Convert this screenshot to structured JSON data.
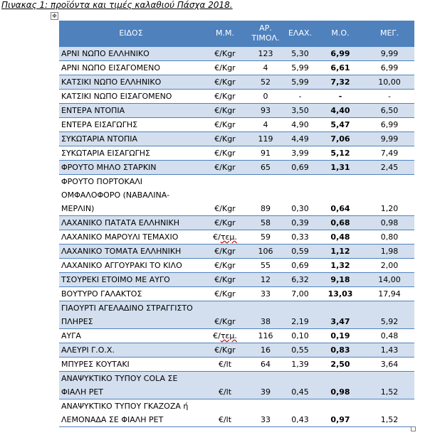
{
  "caption": "Πινακας 1: προϊόντα και τιμές καλαθιού Πάσχα 2018.",
  "move_handle_glyph": "✥",
  "headers": {
    "eidos": "ΕΙΔΟΣ",
    "mm": "Μ.Μ.",
    "artimol_line1": "ΑΡ.",
    "artimol_line2": "ΤΙΜΟΛ.",
    "elax": "ΕΛΑΧ.",
    "mo": "Μ.Ο.",
    "meg": "ΜΕΓ."
  },
  "rows": [
    {
      "eidos": "ΑΡΝΙ ΝΩΠΟ ΕΛΛΗΝΙΚΟ",
      "mm": "€/Kgr",
      "artimol": "123",
      "elax": "5,30",
      "mo": "6,99",
      "meg": "9,99"
    },
    {
      "eidos": "ΑΡΝΙ ΝΩΠΟ ΕΙΣΑΓΟΜΕΝΟ",
      "mm": "€/Kgr",
      "artimol": "4",
      "elax": "5,99",
      "mo": "6,61",
      "meg": "6,99"
    },
    {
      "eidos": "ΚΑΤΣΙΚΙ ΝΩΠΟ ΕΛΛΗΝΙΚΟ",
      "mm": "€/Kgr",
      "artimol": "52",
      "elax": "5,99",
      "mo": "7,32",
      "meg": "10,00"
    },
    {
      "eidos": "ΚΑΤΣΙΚΙ ΝΩΠΟ ΕΙΣΑΓΟΜΕΝΟ",
      "mm": "€/Kgr",
      "artimol": "0",
      "elax": "-",
      "mo": "-",
      "meg": "-"
    },
    {
      "eidos": "ΕΝΤΕΡΑ ΝΤΟΠΙΑ",
      "mm": "€/Kgr",
      "artimol": "93",
      "elax": "3,50",
      "mo": "4,40",
      "meg": "6,50"
    },
    {
      "eidos": "ΕΝΤΕΡΑ ΕΙΣΑΓΩΓΗΣ",
      "mm": "€/Kgr",
      "artimol": "4",
      "elax": "4,90",
      "mo": "5,47",
      "meg": "6,99"
    },
    {
      "eidos": "ΣΥΚΩΤΑΡΙΑ ΝΤΟΠΙΑ",
      "mm": "€/Kgr",
      "artimol": "119",
      "elax": "4,49",
      "mo": "7,06",
      "meg": "9,99"
    },
    {
      "eidos": "ΣΥΚΩΤΑΡΙΑ ΕΙΣΑΓΩΓΗΣ",
      "mm": "€/Kgr",
      "artimol": "91",
      "elax": "3,99",
      "mo": "5,12",
      "meg": "7,49"
    },
    {
      "eidos": "ΦΡΟΥΤΟ ΜΗΛΟ ΣΤΑΡΚΙΝ",
      "mm": "€/Kgr",
      "artimol": "65",
      "elax": "0,69",
      "mo": "1,31",
      "meg": "2,45"
    },
    {
      "eidos": "ΦΡΟΥΤΟ ΠΟΡΤΟΚΑΛΙ ΟΜΦΑΛΟΦΟΡΟ (ΝΑΒΑΛΙΝΑ-ΜΕΡΛΙΝ)",
      "mm": "€/Kgr",
      "artimol": "89",
      "elax": "0,30",
      "mo": "0,64",
      "meg": "1,20"
    },
    {
      "eidos": "ΛΑΧΑΝΙΚΟ ΠΑΤΑΤΑ ΕΛΛΗΝΙΚΗ",
      "mm": "€/Kgr",
      "artimol": "58",
      "elax": "0,39",
      "mo": "0,68",
      "meg": "0,98"
    },
    {
      "eidos": "ΛΑΧΑΝΙΚΟ ΜΑΡΟΥΛΙ ΤΕΜΑΧΙΟ",
      "mm": "€/τεμ.",
      "artimol": "59",
      "elax": "0,33",
      "mo": "0,48",
      "meg": "0,80"
    },
    {
      "eidos": "ΛΑΧΑΝΙΚΟ ΤΟΜΑΤΑ ΕΛΛΗΝΙΚΗ",
      "mm": "€/Kgr",
      "artimol": "106",
      "elax": "0,59",
      "mo": "1,12",
      "meg": "1,98"
    },
    {
      "eidos": "ΛΑΧΑΝΙΚΟ ΑΓΓΟΥΡΑΚΙ ΤΟ ΚΙΛΟ",
      "mm": "€/Kgr",
      "artimol": "55",
      "elax": "0,69",
      "mo": "1,32",
      "meg": "2,00"
    },
    {
      "eidos": "ΤΣΟΥΡΕΚΙ ΕΤΟΙΜΟ ΜΕ ΑΥΓΟ",
      "mm": "€/Kgr",
      "artimol": "12",
      "elax": "6,32",
      "mo": "9,18",
      "meg": "14,00"
    },
    {
      "eidos": "ΒΟΥΤΥΡΟ ΓΑΛΑΚΤΟΣ",
      "mm": "€/Kgr",
      "artimol": "33",
      "elax": "7,00",
      "mo": "13,03",
      "meg": "17,94"
    },
    {
      "eidos": "ΓΙΑΟΥΡΤΙ ΑΓΕΛΑΔΙΝΟ ΣΤΡΑΓΓΙΣΤΟ ΠΛΗΡΕΣ",
      "mm": "€/Kgr",
      "artimol": "38",
      "elax": "2,19",
      "mo": "3,47",
      "meg": "5,92"
    },
    {
      "eidos": "ΑΥΓΑ",
      "mm": "€/τεμ.",
      "artimol": "116",
      "elax": "0,10",
      "mo": "0,19",
      "meg": "0,48"
    },
    {
      "eidos": "ΑΛΕΥΡΙ Γ.Ο.Χ.",
      "mm": "€/Kgr",
      "artimol": "16",
      "elax": "0,55",
      "mo": "0,83",
      "meg": "1,43"
    },
    {
      "eidos": "ΜΠΥΡΕΣ ΚΟΥΤΑΚΙ",
      "mm": "€/lt",
      "artimol": "64",
      "elax": "1,39",
      "mo": "2,50",
      "meg": "3,64"
    },
    {
      "eidos": "ΑΝΑΨΥΚΤΙΚΟ ΤΥΠΟΥ COLA ΣΕ ΦΙΑΛΗ PET",
      "mm": "€/lt",
      "artimol": "39",
      "elax": "0,45",
      "mo": "0,98",
      "meg": "1,52"
    },
    {
      "eidos": "ΑΝΑΨΥΚΤΙΚΟ ΤΥΠΟΥ ΓΚΑΖΟΖΑ ή ΛΕΜΟΝΑΔΑ ΣΕ ΦΙΑΛΗ PET",
      "mm": "€/lt",
      "artimol": "33",
      "elax": "0,43",
      "mo": "0,97",
      "meg": "1,52"
    }
  ]
}
